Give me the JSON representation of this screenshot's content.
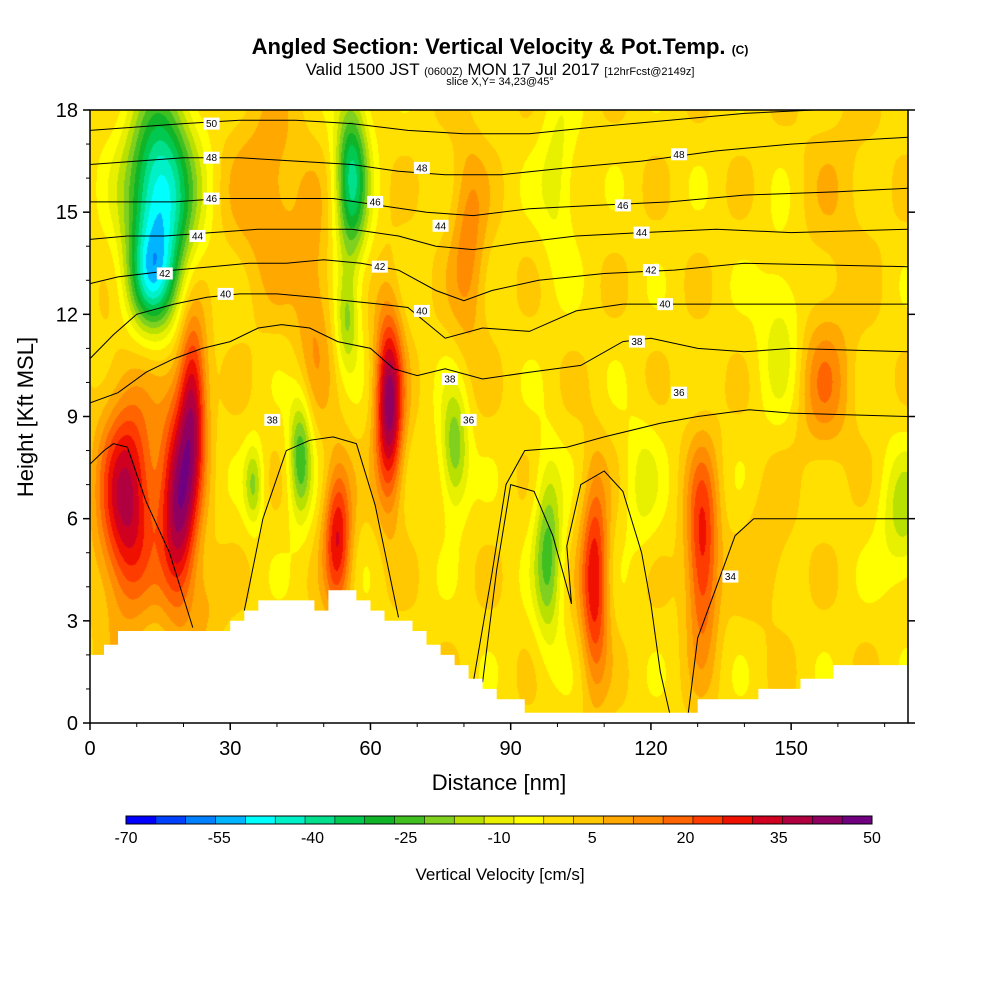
{
  "chart_data": {
    "type": "heatmap",
    "title": "Angled Section: Vertical Velocity & Pot.Temp.",
    "title_unit": "(C)",
    "subtitle_parts": [
      "Valid 1500 JST ",
      "(0600Z)",
      " MON 17 Jul 2017 ",
      "[12hrFcst@2149z]"
    ],
    "slice": "slice X,Y= 34,23@45°",
    "xlabel": "Distance [nm]",
    "ylabel": "Height [Kft MSL]",
    "xlim": [
      0,
      175
    ],
    "ylim": [
      0,
      18
    ],
    "x_ticks": [
      0,
      30,
      60,
      90,
      120,
      150
    ],
    "y_ticks": [
      0,
      3,
      6,
      9,
      12,
      15,
      18
    ],
    "colorbar": {
      "title": "Vertical Velocity [cm/s]",
      "min": -70,
      "max": 50,
      "step": 5,
      "tick_labels": [
        "-70",
        "-55",
        "-40",
        "-25",
        "-10",
        "5",
        "20",
        "35",
        "50"
      ],
      "colors": [
        "#0000ff",
        "#0040ff",
        "#0080ff",
        "#00b4ff",
        "#00ffff",
        "#00f0c8",
        "#00e08c",
        "#00c850",
        "#10b428",
        "#40c020",
        "#80d020",
        "#b8e000",
        "#e8f000",
        "#ffff00",
        "#ffe000",
        "#ffc800",
        "#ffa800",
        "#ff8c00",
        "#ff6400",
        "#ff3c00",
        "#f01000",
        "#d00020",
        "#b00040",
        "#900060",
        "#700080"
      ]
    },
    "terrain": [
      [
        0,
        2.0
      ],
      [
        3,
        2.0
      ],
      [
        3,
        2.3
      ],
      [
        6,
        2.3
      ],
      [
        6,
        2.7
      ],
      [
        30,
        2.7
      ],
      [
        30,
        3.0
      ],
      [
        33,
        3.0
      ],
      [
        33,
        3.3
      ],
      [
        36,
        3.3
      ],
      [
        36,
        3.6
      ],
      [
        48,
        3.6
      ],
      [
        48,
        3.3
      ],
      [
        51,
        3.3
      ],
      [
        51,
        3.9
      ],
      [
        57,
        3.9
      ],
      [
        57,
        3.6
      ],
      [
        60,
        3.6
      ],
      [
        60,
        3.3
      ],
      [
        63,
        3.3
      ],
      [
        63,
        3.0
      ],
      [
        69,
        3.0
      ],
      [
        69,
        2.7
      ],
      [
        72,
        2.7
      ],
      [
        72,
        2.3
      ],
      [
        75,
        2.3
      ],
      [
        75,
        2.0
      ],
      [
        78,
        2.0
      ],
      [
        78,
        1.7
      ],
      [
        81,
        1.7
      ],
      [
        81,
        1.3
      ],
      [
        84,
        1.3
      ],
      [
        84,
        1.0
      ],
      [
        87,
        1.0
      ],
      [
        87,
        0.7
      ],
      [
        93,
        0.7
      ],
      [
        93,
        0.3
      ],
      [
        130,
        0.3
      ],
      [
        130,
        0.7
      ],
      [
        143,
        0.7
      ],
      [
        143,
        1.0
      ],
      [
        152,
        1.0
      ],
      [
        152,
        1.3
      ],
      [
        159,
        1.3
      ],
      [
        159,
        1.7
      ],
      [
        175,
        1.7
      ]
    ],
    "vertical_velocity_cells": [
      {
        "x": 8,
        "y": 6.5,
        "sx": 6,
        "sy": 3.2,
        "v": 42
      },
      {
        "x": 19,
        "y": 6.3,
        "sx": 4,
        "sy": 3.0,
        "v": 45
      },
      {
        "x": 22,
        "y": 9.5,
        "sx": 3,
        "sy": 2.5,
        "v": 38
      },
      {
        "x": 15,
        "y": 15.5,
        "sx": 7,
        "sy": 2.8,
        "v": -50
      },
      {
        "x": 13,
        "y": 13.0,
        "sx": 5,
        "sy": 1.5,
        "v": -25
      },
      {
        "x": 45,
        "y": 7.8,
        "sx": 2.5,
        "sy": 1.8,
        "v": -25
      },
      {
        "x": 35,
        "y": 7.0,
        "sx": 2,
        "sy": 1.2,
        "v": -15
      },
      {
        "x": 53,
        "y": 5.5,
        "sx": 3,
        "sy": 2.2,
        "v": 35
      },
      {
        "x": 64,
        "y": 9.3,
        "sx": 3,
        "sy": 2.8,
        "v": 48
      },
      {
        "x": 56,
        "y": 16.0,
        "sx": 3.5,
        "sy": 2.5,
        "v": -35
      },
      {
        "x": 55,
        "y": 11.8,
        "sx": 2.5,
        "sy": 1.5,
        "v": -15
      },
      {
        "x": 78,
        "y": 8.0,
        "sx": 3,
        "sy": 1.8,
        "v": -20
      },
      {
        "x": 81,
        "y": 14.0,
        "sx": 4,
        "sy": 3.0,
        "v": 18
      },
      {
        "x": 98,
        "y": 5.0,
        "sx": 3,
        "sy": 2.6,
        "v": -22
      },
      {
        "x": 108,
        "y": 4.2,
        "sx": 3,
        "sy": 3.0,
        "v": 35
      },
      {
        "x": 131,
        "y": 5.0,
        "sx": 3.5,
        "sy": 3.0,
        "v": 33
      },
      {
        "x": 100,
        "y": 16.0,
        "sx": 4,
        "sy": 2.5,
        "v": -8
      },
      {
        "x": 118,
        "y": 7.0,
        "sx": 4,
        "sy": 2.0,
        "v": -6
      },
      {
        "x": 148,
        "y": 11.5,
        "sx": 5,
        "sy": 2.5,
        "v": -8
      },
      {
        "x": 157,
        "y": 10.0,
        "sx": 6,
        "sy": 2.2,
        "v": 18
      },
      {
        "x": 174,
        "y": 6.0,
        "sx": 5,
        "sy": 2.0,
        "v": -12
      },
      {
        "x": 38,
        "y": 15.5,
        "sx": 8,
        "sy": 3.0,
        "v": 15
      },
      {
        "x": 48,
        "y": 12.0,
        "sx": 4,
        "sy": 3.0,
        "v": 15
      },
      {
        "x": 145,
        "y": 5.0,
        "sx": 5,
        "sy": 2.0,
        "v": 10
      },
      {
        "x": 160,
        "y": 15.5,
        "sx": 8,
        "sy": 3.0,
        "v": 8
      },
      {
        "x": 25,
        "y": 3.5,
        "sx": 4,
        "sy": 1.5,
        "v": 10
      }
    ],
    "background_velocity": 3,
    "theta_contours": [
      {
        "value": 34,
        "label": "34",
        "points": [
          [
            103,
            3.5
          ],
          [
            99,
            5.5
          ],
          [
            95,
            6.8
          ],
          [
            90,
            7.0
          ],
          [
            87,
            4.5
          ],
          [
            84,
            1.2
          ]
        ]
      },
      {
        "value": 34,
        "label": "34",
        "points": [
          [
            124,
            0.3
          ],
          [
            122,
            1.5
          ],
          [
            120,
            3.5
          ],
          [
            118,
            5.0
          ],
          [
            114,
            6.8
          ],
          [
            110,
            7.4
          ],
          [
            105,
            7.0
          ],
          [
            102,
            5.2
          ],
          [
            103,
            3.5
          ]
        ]
      },
      {
        "value": 34,
        "label": "34",
        "points": [
          [
            128,
            0.3
          ],
          [
            130,
            2.5
          ],
          [
            134,
            4.0
          ],
          [
            138,
            5.5
          ],
          [
            142,
            6.0
          ],
          [
            148,
            6.0
          ],
          [
            175,
            6.0
          ]
        ]
      },
      {
        "value": 36,
        "label": "36",
        "points": [
          [
            0,
            7.6
          ],
          [
            3,
            8.0
          ],
          [
            5,
            8.2
          ],
          [
            8,
            8.1
          ],
          [
            12,
            6.5
          ],
          [
            17,
            5.0
          ],
          [
            22,
            2.8
          ]
        ]
      },
      {
        "value": 36,
        "label": "36",
        "points": [
          [
            33,
            3.3
          ],
          [
            37,
            6.0
          ],
          [
            42,
            8.0
          ],
          [
            47,
            8.3
          ],
          [
            52,
            8.4
          ],
          [
            57,
            8.2
          ],
          [
            61,
            6.4
          ],
          [
            66,
            3.1
          ]
        ]
      },
      {
        "value": 36,
        "label": "36",
        "points": [
          [
            82,
            1.2
          ],
          [
            86,
            4.4
          ],
          [
            89,
            7.0
          ],
          [
            93,
            8.0
          ],
          [
            102,
            8.1
          ],
          [
            110,
            8.4
          ],
          [
            122,
            8.8
          ],
          [
            130,
            9.0
          ],
          [
            141,
            9.2
          ],
          [
            150,
            9.1
          ],
          [
            175,
            9.0
          ]
        ]
      },
      {
        "value": 38,
        "label": "38",
        "points": [
          [
            0,
            9.4
          ],
          [
            6,
            9.7
          ],
          [
            12,
            10.3
          ],
          [
            18,
            10.7
          ],
          [
            24,
            11.0
          ],
          [
            30,
            11.2
          ],
          [
            36,
            11.6
          ],
          [
            41,
            11.7
          ],
          [
            47,
            11.6
          ],
          [
            53,
            11.2
          ],
          [
            60,
            11.0
          ],
          [
            65,
            10.4
          ],
          [
            70,
            10.2
          ],
          [
            76,
            10.4
          ],
          [
            84,
            10.1
          ],
          [
            94,
            10.3
          ],
          [
            105,
            10.5
          ],
          [
            114,
            11.2
          ],
          [
            120,
            11.3
          ],
          [
            130,
            11.0
          ],
          [
            140,
            10.9
          ],
          [
            150,
            11.0
          ],
          [
            175,
            10.9
          ]
        ]
      },
      {
        "value": 40,
        "label": "40",
        "points": [
          [
            0,
            10.7
          ],
          [
            5,
            11.4
          ],
          [
            10,
            12.0
          ],
          [
            18,
            12.3
          ],
          [
            25,
            12.5
          ],
          [
            32,
            12.6
          ],
          [
            40,
            12.6
          ],
          [
            48,
            12.5
          ],
          [
            55,
            12.4
          ],
          [
            62,
            12.3
          ],
          [
            68,
            12.2
          ],
          [
            76,
            11.3
          ],
          [
            84,
            11.6
          ],
          [
            94,
            11.5
          ],
          [
            104,
            12.1
          ],
          [
            114,
            12.3
          ],
          [
            124,
            12.3
          ],
          [
            136,
            12.3
          ],
          [
            150,
            12.3
          ],
          [
            175,
            12.3
          ]
        ]
      },
      {
        "value": 42,
        "label": "42",
        "points": [
          [
            0,
            12.9
          ],
          [
            6,
            13.1
          ],
          [
            12,
            13.2
          ],
          [
            18,
            13.3
          ],
          [
            26,
            13.4
          ],
          [
            34,
            13.5
          ],
          [
            42,
            13.5
          ],
          [
            50,
            13.6
          ],
          [
            58,
            13.5
          ],
          [
            66,
            13.3
          ],
          [
            74,
            12.7
          ],
          [
            80,
            12.4
          ],
          [
            86,
            12.7
          ],
          [
            96,
            13.0
          ],
          [
            110,
            13.2
          ],
          [
            125,
            13.3
          ],
          [
            140,
            13.5
          ],
          [
            175,
            13.4
          ]
        ]
      },
      {
        "value": 44,
        "label": "44",
        "points": [
          [
            0,
            14.2
          ],
          [
            8,
            14.3
          ],
          [
            16,
            14.3
          ],
          [
            26,
            14.4
          ],
          [
            36,
            14.5
          ],
          [
            46,
            14.5
          ],
          [
            56,
            14.5
          ],
          [
            66,
            14.3
          ],
          [
            74,
            14.0
          ],
          [
            82,
            13.9
          ],
          [
            92,
            14.1
          ],
          [
            104,
            14.3
          ],
          [
            118,
            14.4
          ],
          [
            134,
            14.5
          ],
          [
            150,
            14.4
          ],
          [
            175,
            14.5
          ]
        ]
      },
      {
        "value": 46,
        "label": "46",
        "points": [
          [
            0,
            15.3
          ],
          [
            8,
            15.3
          ],
          [
            18,
            15.3
          ],
          [
            28,
            15.4
          ],
          [
            40,
            15.4
          ],
          [
            52,
            15.4
          ],
          [
            62,
            15.2
          ],
          [
            72,
            15.0
          ],
          [
            82,
            14.9
          ],
          [
            94,
            15.1
          ],
          [
            108,
            15.2
          ],
          [
            124,
            15.3
          ],
          [
            140,
            15.5
          ],
          [
            160,
            15.6
          ],
          [
            175,
            15.7
          ]
        ]
      },
      {
        "value": 48,
        "label": "48",
        "points": [
          [
            0,
            16.4
          ],
          [
            10,
            16.5
          ],
          [
            20,
            16.6
          ],
          [
            32,
            16.6
          ],
          [
            44,
            16.5
          ],
          [
            56,
            16.4
          ],
          [
            66,
            16.2
          ],
          [
            76,
            16.1
          ],
          [
            88,
            16.1
          ],
          [
            102,
            16.3
          ],
          [
            118,
            16.5
          ],
          [
            134,
            16.8
          ],
          [
            150,
            17.0
          ],
          [
            175,
            17.2
          ]
        ]
      },
      {
        "value": 50,
        "label": "50",
        "points": [
          [
            0,
            17.4
          ],
          [
            10,
            17.5
          ],
          [
            20,
            17.6
          ],
          [
            32,
            17.7
          ],
          [
            44,
            17.7
          ],
          [
            56,
            17.6
          ],
          [
            68,
            17.4
          ],
          [
            80,
            17.3
          ],
          [
            94,
            17.3
          ],
          [
            108,
            17.5
          ],
          [
            124,
            17.7
          ],
          [
            140,
            17.9
          ],
          [
            155,
            18.0
          ]
        ]
      }
    ],
    "contour_labels": [
      {
        "text": "50",
        "x": 26,
        "y": 17.6
      },
      {
        "text": "48",
        "x": 26,
        "y": 16.6
      },
      {
        "text": "46",
        "x": 26,
        "y": 15.4
      },
      {
        "text": "44",
        "x": 23,
        "y": 14.3
      },
      {
        "text": "42",
        "x": 16,
        "y": 13.2
      },
      {
        "text": "40",
        "x": 29,
        "y": 12.6
      },
      {
        "text": "38",
        "x": 39,
        "y": 8.9
      },
      {
        "text": "48",
        "x": 71,
        "y": 16.3
      },
      {
        "text": "46",
        "x": 61,
        "y": 15.3
      },
      {
        "text": "44",
        "x": 75,
        "y": 14.6
      },
      {
        "text": "42",
        "x": 62,
        "y": 13.4
      },
      {
        "text": "40",
        "x": 71,
        "y": 12.1
      },
      {
        "text": "38",
        "x": 77,
        "y": 10.1
      },
      {
        "text": "36",
        "x": 81,
        "y": 8.9
      },
      {
        "text": "48",
        "x": 126,
        "y": 16.7
      },
      {
        "text": "46",
        "x": 114,
        "y": 15.2
      },
      {
        "text": "44",
        "x": 118,
        "y": 14.4
      },
      {
        "text": "42",
        "x": 120,
        "y": 13.3
      },
      {
        "text": "40",
        "x": 123,
        "y": 12.3
      },
      {
        "text": "38",
        "x": 117,
        "y": 11.2
      },
      {
        "text": "36",
        "x": 126,
        "y": 9.7
      },
      {
        "text": "34",
        "x": 137,
        "y": 4.3
      }
    ]
  }
}
